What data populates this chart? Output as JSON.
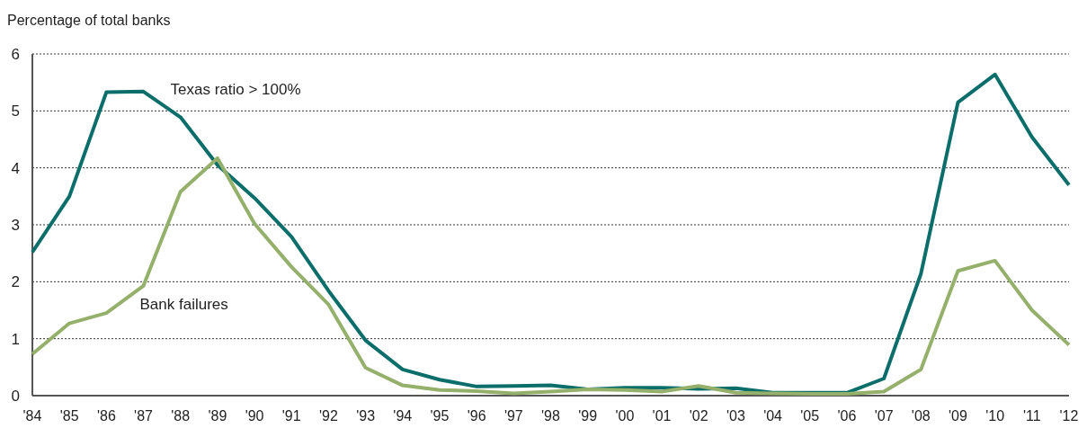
{
  "chart_data": {
    "type": "line",
    "ylabel": "Percentage of total banks",
    "x": [
      1984,
      1985,
      1986,
      1987,
      1988,
      1989,
      1990,
      1991,
      1992,
      1993,
      1994,
      1995,
      1996,
      1997,
      1998,
      1999,
      2000,
      2001,
      2002,
      2003,
      2004,
      2005,
      2006,
      2007,
      2008,
      2009,
      2010,
      2011,
      2012
    ],
    "series": [
      {
        "name": "Texas ratio > 100%",
        "color": "#0b6e6a",
        "values": [
          2.52,
          3.5,
          5.33,
          5.34,
          4.89,
          4.05,
          3.47,
          2.79,
          1.84,
          0.97,
          0.46,
          0.28,
          0.16,
          0.17,
          0.18,
          0.11,
          0.14,
          0.14,
          0.12,
          0.13,
          0.05,
          0.05,
          0.05,
          0.3,
          2.14,
          5.15,
          5.64,
          4.54,
          3.7
        ]
      },
      {
        "name": "Bank failures",
        "color": "#94b06a",
        "values": [
          0.73,
          1.27,
          1.45,
          1.93,
          3.58,
          4.17,
          3.02,
          2.26,
          1.6,
          0.49,
          0.18,
          0.1,
          0.08,
          0.04,
          0.07,
          0.11,
          0.1,
          0.07,
          0.17,
          0.05,
          0.04,
          0.03,
          0.03,
          0.07,
          0.46,
          2.19,
          2.37,
          1.5,
          0.89
        ]
      }
    ],
    "xlim": [
      1984,
      2012
    ],
    "xticks": [
      {
        "value": 1984,
        "label": "'84"
      },
      {
        "value": 1985,
        "label": "'85"
      },
      {
        "value": 1986,
        "label": "'86"
      },
      {
        "value": 1987,
        "label": "'87"
      },
      {
        "value": 1988,
        "label": "'88"
      },
      {
        "value": 1989,
        "label": "'89"
      },
      {
        "value": 1990,
        "label": "'90"
      },
      {
        "value": 1991,
        "label": "'91"
      },
      {
        "value": 1992,
        "label": "'92"
      },
      {
        "value": 1993,
        "label": "'93"
      },
      {
        "value": 1994,
        "label": "'94"
      },
      {
        "value": 1995,
        "label": "'95"
      },
      {
        "value": 1996,
        "label": "'96"
      },
      {
        "value": 1997,
        "label": "'97"
      },
      {
        "value": 1998,
        "label": "'98"
      },
      {
        "value": 1999,
        "label": "'99"
      },
      {
        "value": 2000,
        "label": "'00"
      },
      {
        "value": 2001,
        "label": "'01"
      },
      {
        "value": 2002,
        "label": "'02"
      },
      {
        "value": 2003,
        "label": "'03"
      },
      {
        "value": 2004,
        "label": "'04"
      },
      {
        "value": 2005,
        "label": "'05"
      },
      {
        "value": 2006,
        "label": "'06"
      },
      {
        "value": 2007,
        "label": "'07"
      },
      {
        "value": 2008,
        "label": "'08"
      },
      {
        "value": 2009,
        "label": "'09"
      },
      {
        "value": 2010,
        "label": "'10"
      },
      {
        "value": 2011,
        "label": "'11"
      },
      {
        "value": 2012,
        "label": "'12"
      }
    ],
    "ylim": [
      0,
      6
    ],
    "yticks": [
      0,
      1,
      2,
      3,
      4,
      5,
      6
    ],
    "grid": "y",
    "legend": false,
    "marker": "none",
    "line_style": "solid"
  }
}
